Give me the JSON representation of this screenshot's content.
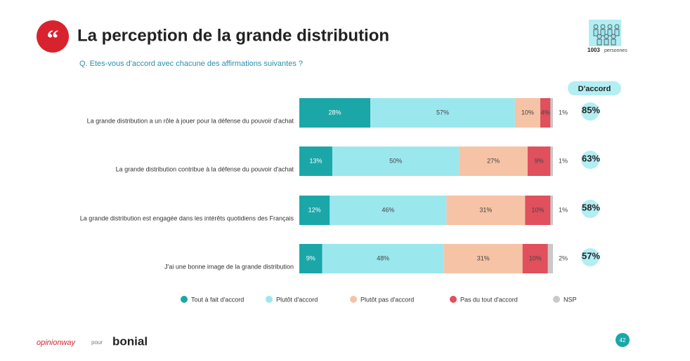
{
  "chart_data": {
    "type": "stacked-bar-horizontal",
    "title": "La perception de la grande distribution",
    "subtitle": "Q. Etes-vous d'accord avec chacune des affirmations suivantes ?",
    "sample": {
      "count": 1003,
      "label": "personnes"
    },
    "categories": [
      "La grande distribution a un rôle à jouer pour la défense du pouvoir d'achat",
      "La grande distribution contribue à la défense du pouvoir d'achat",
      "La grande distribution est engagée dans les intérêts quotidiens des Français",
      "J'ai une bonne image de la grande distribution"
    ],
    "xlim": [
      0,
      100
    ],
    "series": [
      {
        "name": "Tout à fait d'accord",
        "color": "#1ba7a8",
        "values": [
          28,
          13,
          12,
          9
        ],
        "value_labels": [
          "28%",
          "13%",
          "12%",
          "9%"
        ]
      },
      {
        "name": "Plutôt d'accord",
        "color": "#9be7ee",
        "values": [
          57,
          50,
          46,
          48
        ],
        "value_labels": [
          "57%",
          "50%",
          "46%",
          "48%"
        ]
      },
      {
        "name": "Plutôt pas d'accord",
        "color": "#f6c3a6",
        "values": [
          10,
          27,
          31,
          31
        ],
        "value_labels": [
          "10%",
          "27%",
          "31%",
          "31%"
        ]
      },
      {
        "name": "Pas du tout d'accord",
        "color": "#e0505d",
        "values": [
          4,
          9,
          10,
          10
        ],
        "value_labels": [
          "4%",
          "9%",
          "10%",
          "10%"
        ]
      },
      {
        "name": "NSP",
        "color": "#c9c9c9",
        "values": [
          1,
          1,
          1,
          2
        ],
        "value_labels": [
          "1%",
          "1%",
          "1%",
          "2%"
        ]
      }
    ],
    "totals": {
      "title": "D'accord",
      "color": "#b3eef3",
      "values": [
        85,
        63,
        58,
        57
      ],
      "value_labels": [
        "85%",
        "63%",
        "58%",
        "57%"
      ]
    },
    "legend": "bottom"
  },
  "footer": {
    "brand": "opinionway",
    "connector": "pour",
    "client": "bonial",
    "page": 42
  }
}
